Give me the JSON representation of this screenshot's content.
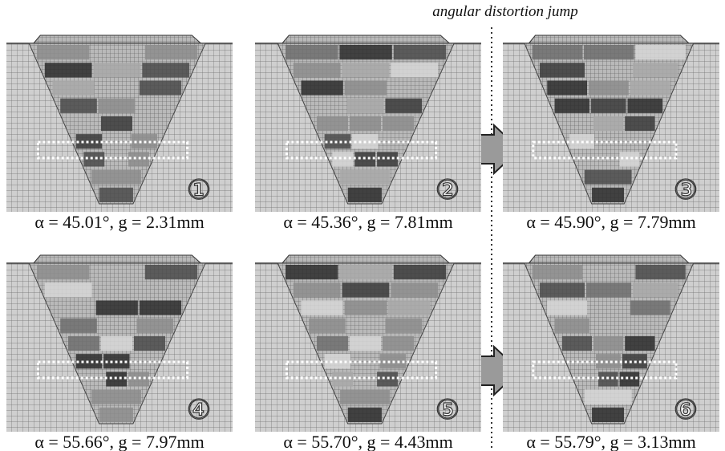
{
  "annotation": "angular distortion jump",
  "panels": [
    {
      "label": "①",
      "caption": "α = 45.01°, g = 2.31mm"
    },
    {
      "label": "②",
      "caption": "α = 45.36°, g = 7.81mm"
    },
    {
      "label": "③",
      "caption": "α = 45.90°, g = 7.79mm"
    },
    {
      "label": "④",
      "caption": "α = 55.66°, g = 7.97mm"
    },
    {
      "label": "⑤",
      "caption": "α = 55.70°, g = 4.43mm"
    },
    {
      "label": "⑥",
      "caption": "α = 55.79°, g = 3.13mm"
    }
  ]
}
